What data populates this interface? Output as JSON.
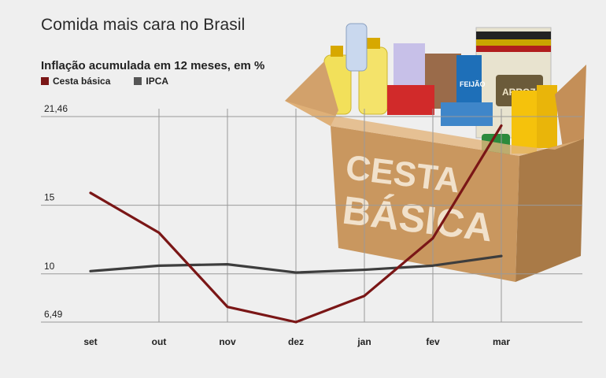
{
  "header": {
    "title": "Comida mais cara no Brasil",
    "subtitle": "Inflação acumulada em 12 meses, em %"
  },
  "illustration": {
    "box_text_line1": "CESTA",
    "box_text_line2": "BÁSICA",
    "pack_label_1": "ARROZ",
    "pack_label_2": "FEIJÃO"
  },
  "colors": {
    "background": "#efefef",
    "cesta": "#7a1616",
    "ipca": "#3d3d3d",
    "grid": "#9a9a9a"
  },
  "chart_data": {
    "type": "line",
    "title": "Inflação acumulada em 12 meses, em %",
    "xlabel": "",
    "ylabel": "",
    "categories": [
      "set",
      "out",
      "nov",
      "dez",
      "jan",
      "fev",
      "mar"
    ],
    "y_ticks": [
      6.49,
      10,
      15,
      21.46
    ],
    "y_tick_labels": [
      "6,49",
      "10",
      "15",
      "21,46"
    ],
    "ylim": [
      6.49,
      21.46
    ],
    "series": [
      {
        "name": "Cesta básica",
        "color": "#7a1616",
        "values": [
          15.9,
          13.0,
          7.6,
          6.49,
          8.4,
          12.6,
          20.8
        ]
      },
      {
        "name": "IPCA",
        "color": "#3d3d3d",
        "values": [
          10.2,
          10.6,
          10.7,
          10.1,
          10.3,
          10.6,
          11.3
        ]
      }
    ],
    "legend": "top-left",
    "grid": true
  }
}
